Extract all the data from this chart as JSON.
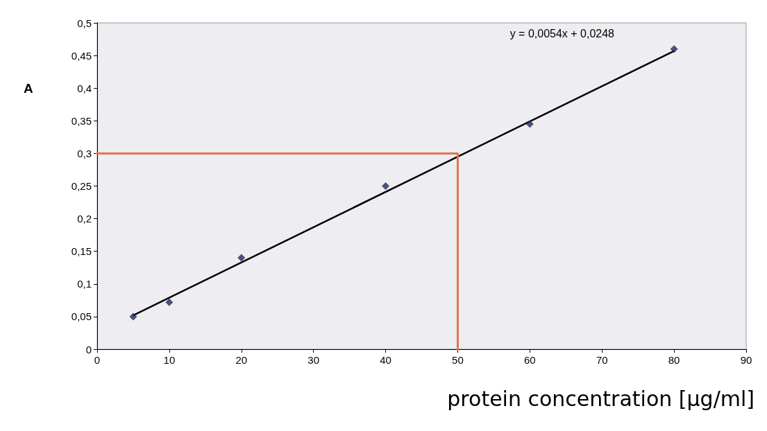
{
  "chart_data": {
    "type": "scatter",
    "xlabel": "protein concentration [µg/ml]",
    "ylabel": "A",
    "annotations": [
      "y = 0,0054x + 0,0248"
    ],
    "marker": "diamond",
    "grid": false,
    "xlim": [
      0,
      90
    ],
    "xticks": [
      0,
      10,
      20,
      30,
      40,
      50,
      60,
      70,
      80,
      90
    ],
    "ylim": [
      0,
      0.5
    ],
    "yticks": [
      0,
      {
        "value": 0.05,
        "label": "0,05"
      },
      {
        "value": 0.1,
        "label": "0,1"
      },
      {
        "value": 0.15,
        "label": "0,15"
      },
      {
        "value": 0.2,
        "label": "0,2"
      },
      {
        "value": 0.25,
        "label": "0,25"
      },
      {
        "value": 0.3,
        "label": "0,3"
      },
      {
        "value": 0.35,
        "label": "0,35"
      },
      {
        "value": 0.4,
        "label": "0,4"
      },
      {
        "value": 0.45,
        "label": "0,45"
      },
      {
        "value": 0.5,
        "label": "0,5"
      }
    ],
    "series": [
      {
        "color": "#1f2a5c",
        "x": [
          5,
          10,
          20,
          40,
          60,
          80
        ],
        "values": [
          0.05,
          0.072,
          0.14,
          0.25,
          0.345,
          0.46
        ]
      },
      {
        "type": "line",
        "color": "#000000",
        "marker": "none",
        "x": [
          5,
          80
        ],
        "values": [
          0.052,
          0.457
        ]
      },
      {
        "type": "line",
        "color": "#e8734f",
        "marker": "none",
        "x": [
          0,
          50,
          50
        ],
        "values": [
          0.3,
          0.3,
          0
        ]
      }
    ]
  }
}
